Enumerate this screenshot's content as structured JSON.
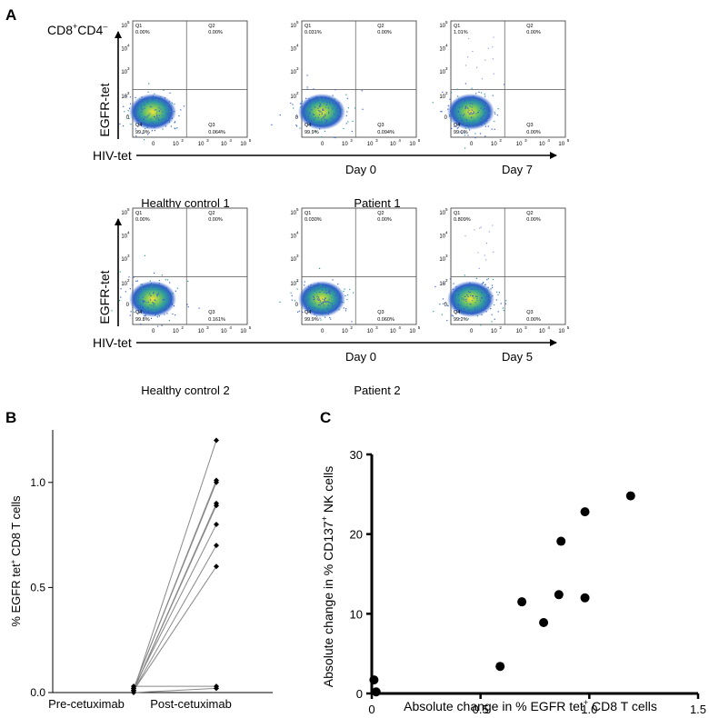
{
  "panel_labels": {
    "a": "A",
    "b": "B",
    "c": "C"
  },
  "panel_a": {
    "population_label_main": "CD8",
    "population_label_sup1": "+",
    "population_label_mid": "CD4",
    "population_label_sup2": "–",
    "y_label": "EGFR-tet",
    "x_label": "HIV-tet",
    "tick_labels": [
      "0",
      "10",
      "2",
      "10",
      "3",
      "10",
      "4",
      "10",
      "5"
    ],
    "rows": [
      {
        "control_label": "Healthy control 1",
        "patient_label": "Patient 1",
        "day_labels": [
          "Day 0",
          "Day 7"
        ],
        "plots": [
          {
            "q1": "0.00%",
            "q2": "0.00%",
            "q3": "0.064%",
            "q4": "99.9%"
          },
          {
            "q1": "0.031%",
            "q2": "0.00%",
            "q3": "0.094%",
            "q4": "99.9%"
          },
          {
            "q1": "1.01%",
            "q2": "0.00%",
            "q3": "0.00%",
            "q4": "99.0%"
          }
        ]
      },
      {
        "control_label": "Healthy control 2",
        "patient_label": "Patient 2",
        "day_labels": [
          "Day 0",
          "Day 5"
        ],
        "plots": [
          {
            "q1": "0.00%",
            "q2": "0.00%",
            "q3": "0.161%",
            "q4": "99.8%"
          },
          {
            "q1": "0.030%",
            "q2": "0.00%",
            "q3": "0.060%",
            "q4": "99.9%"
          },
          {
            "q1": "0.809%",
            "q2": "0.00%",
            "q3": "0.00%",
            "q4": "99.2%"
          }
        ]
      }
    ],
    "quadrant_names": [
      "Q1",
      "Q2",
      "Q3",
      "Q4"
    ]
  },
  "chart_data": [
    {
      "type": "line",
      "panel": "B",
      "title": "",
      "ylabel_parts": [
        "% EGFR tet",
        "+",
        " CD8 T cells"
      ],
      "categories": [
        "Pre-cetuximab",
        "Post-cetuximab"
      ],
      "ylim": [
        0,
        1.25
      ],
      "yticks": [
        0.0,
        0.5,
        1.0
      ],
      "ytick_labels": [
        "0.0",
        "0.5",
        "1.0"
      ],
      "pairs": [
        {
          "pre": 0.01,
          "post": 1.2
        },
        {
          "pre": 0.02,
          "post": 1.01
        },
        {
          "pre": 0.02,
          "post": 1.0
        },
        {
          "pre": 0.01,
          "post": 0.9
        },
        {
          "pre": 0.01,
          "post": 0.89
        },
        {
          "pre": 0.02,
          "post": 0.8
        },
        {
          "pre": 0.01,
          "post": 0.7
        },
        {
          "pre": 0.01,
          "post": 0.6
        },
        {
          "pre": 0.03,
          "post": 0.03
        },
        {
          "pre": 0.0,
          "post": 0.02
        }
      ]
    },
    {
      "type": "scatter",
      "panel": "C",
      "title": "",
      "xlabel_parts": [
        "Absolute change in % EGFR tet",
        "+",
        " CD8 T cells"
      ],
      "ylabel_parts": [
        "Absolute change in % CD137",
        "+",
        " NK cells"
      ],
      "xlim": [
        0,
        1.5
      ],
      "ylim": [
        0,
        30
      ],
      "xticks": [
        0,
        0.5,
        1.0,
        1.5
      ],
      "xtick_labels": [
        "0",
        "0.5",
        "1.0",
        "1.5"
      ],
      "yticks": [
        0,
        10,
        20,
        30
      ],
      "ytick_labels": [
        "0",
        "10",
        "20",
        "30"
      ],
      "points": [
        {
          "x": 1.19,
          "y": 24.8
        },
        {
          "x": 0.98,
          "y": 22.8
        },
        {
          "x": 0.87,
          "y": 19.1
        },
        {
          "x": 0.86,
          "y": 12.4
        },
        {
          "x": 0.98,
          "y": 12.0
        },
        {
          "x": 0.69,
          "y": 11.5
        },
        {
          "x": 0.79,
          "y": 8.9
        },
        {
          "x": 0.59,
          "y": 3.4
        },
        {
          "x": 0.01,
          "y": 1.7
        },
        {
          "x": 0.02,
          "y": 0.2
        }
      ]
    }
  ]
}
